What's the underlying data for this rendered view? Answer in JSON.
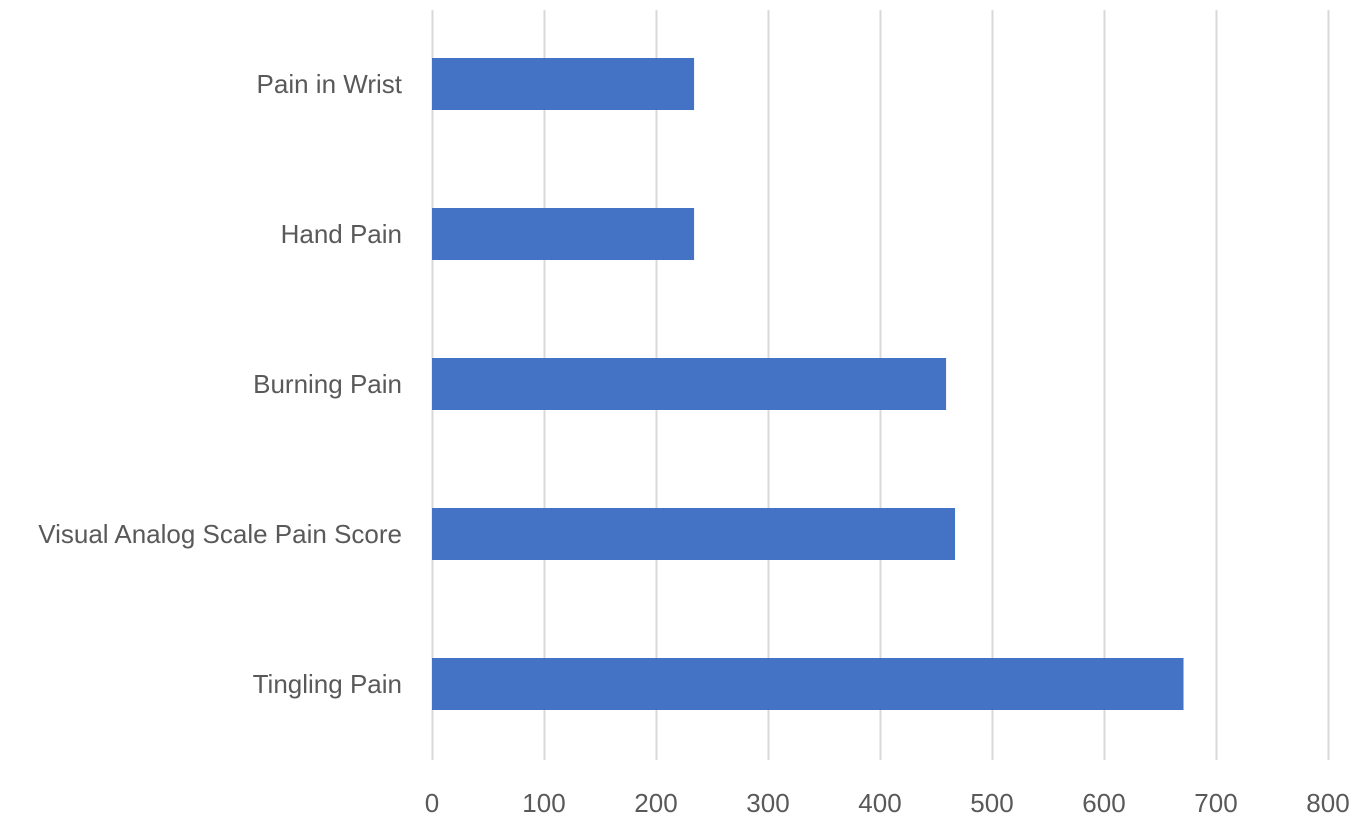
{
  "chart_data": {
    "type": "bar",
    "orientation": "horizontal",
    "title": "",
    "xlabel": "",
    "ylabel": "",
    "categories": [
      "Pain in Wrist",
      "Hand Pain",
      "Burning Pain",
      "Visual Analog Scale Pain Score",
      "Tingling Pain"
    ],
    "values": [
      234,
      234,
      459,
      467,
      671
    ],
    "xlim": [
      0,
      800
    ],
    "ticks": [
      "0",
      "100",
      "200",
      "300",
      "400",
      "500",
      "600",
      "700",
      "800"
    ],
    "grid": true,
    "legend": "none",
    "colors": {
      "bar": "#4472C4",
      "grid": "#D9D9D9",
      "text": "#595959"
    }
  }
}
